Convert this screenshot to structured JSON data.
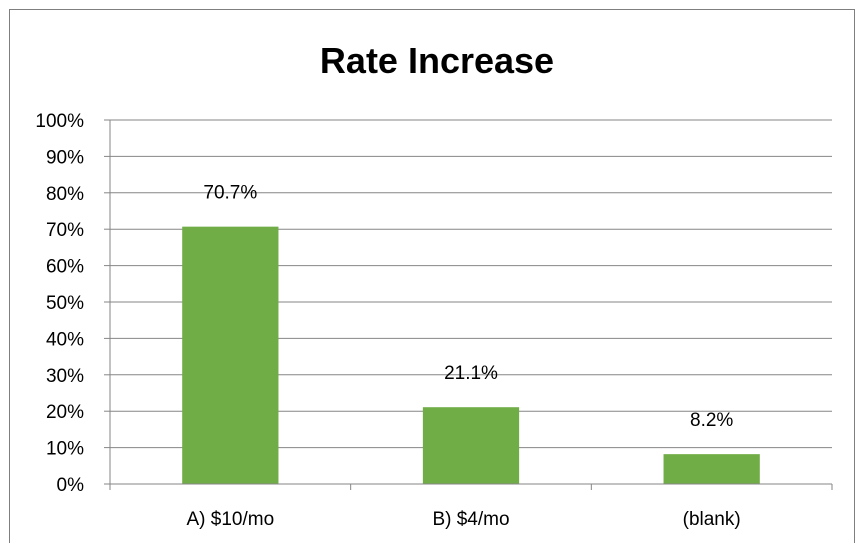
{
  "chart_data": {
    "type": "bar",
    "title": "Rate Increase",
    "xlabel": "",
    "ylabel": "",
    "categories": [
      "A) $10/mo",
      "B) $4/mo",
      "(blank)"
    ],
    "values": [
      70.7,
      21.1,
      8.2
    ],
    "data_labels": [
      "70.7%",
      "21.1%",
      "8.2%"
    ],
    "ylim": [
      0,
      100
    ],
    "yticks": [
      0,
      10,
      20,
      30,
      40,
      50,
      60,
      70,
      80,
      90,
      100
    ],
    "ytick_labels": [
      "0%",
      "10%",
      "20%",
      "30%",
      "40%",
      "50%",
      "60%",
      "70%",
      "80%",
      "90%",
      "100%"
    ],
    "grid": true,
    "legend": "none",
    "bar_color": "#70ad47",
    "grid_color": "#868686"
  }
}
